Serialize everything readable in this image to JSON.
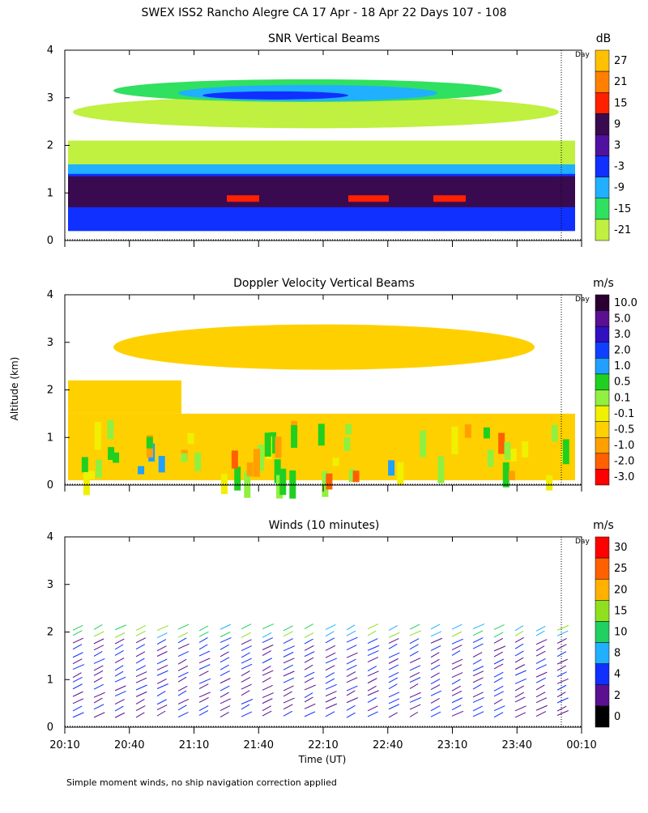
{
  "title": "SWEX ISS2 Rancho Alegre CA  17 Apr - 18 Apr 22 Days 107 - 108",
  "y_axis_label": "Altitude (km)",
  "x_axis_label": "Time (UT)",
  "x_ticks": [
    "20:10",
    "20:40",
    "21:10",
    "21:40",
    "22:10",
    "22:40",
    "23:10",
    "23:40",
    "00:10"
  ],
  "footnote": "Simple moment winds, no ship navigation correction applied",
  "panels": [
    {
      "title": "SNR Vertical Beams",
      "unit": "dB",
      "day_label": "Day",
      "yticks": [
        0,
        1,
        2,
        3,
        4
      ],
      "colorbar": {
        "labels": [
          "27",
          "21",
          "15",
          "9",
          "3",
          "-3",
          "-9",
          "-15",
          "-21"
        ],
        "colors": [
          "#ffc000",
          "#ff8000",
          "#ff2000",
          "#3a0a50",
          "#5010a0",
          "#1030ff",
          "#20b0ff",
          "#30e060",
          "#c0f040"
        ]
      }
    },
    {
      "title": "Doppler Velocity Vertical Beams",
      "unit": "m/s",
      "day_label": "Day",
      "yticks": [
        0,
        1,
        2,
        3,
        4
      ],
      "colorbar": {
        "labels": [
          "10.0",
          "5.0",
          "3.0",
          "2.0",
          "1.0",
          "0.5",
          "0.1",
          "-0.1",
          "-0.5",
          "-1.0",
          "-2.0",
          "-3.0"
        ],
        "colors": [
          "#2a0030",
          "#5a1090",
          "#3010c0",
          "#1040ff",
          "#20a0ff",
          "#20d020",
          "#90f040",
          "#f0f000",
          "#ffd000",
          "#ffa000",
          "#ff6000",
          "#ff0000"
        ]
      }
    },
    {
      "title": "Winds (10 minutes)",
      "unit": "m/s",
      "day_label": "Day",
      "yticks": [
        0,
        1,
        2,
        3,
        4
      ],
      "colorbar": {
        "labels": [
          "30",
          "25",
          "20",
          "15",
          "10",
          "8",
          "4",
          "2",
          "0"
        ],
        "colors": [
          "#ff0000",
          "#ff6000",
          "#ffb000",
          "#90e020",
          "#20d060",
          "#20b0ff",
          "#1030ff",
          "#5a1090",
          "#000000"
        ]
      }
    }
  ]
}
